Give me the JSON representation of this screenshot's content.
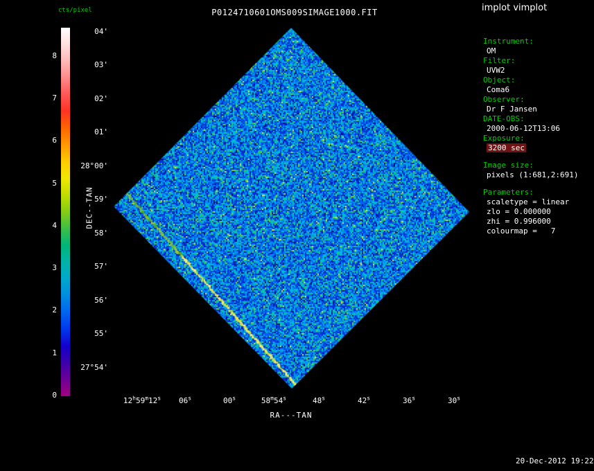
{
  "header": {
    "app_label": "implot vimplot"
  },
  "footer": {
    "timestamp": "20-Dec-2012 19:22"
  },
  "colors": {
    "background": "#000000",
    "label_green": "#00cc00",
    "text_white": "#ffffff",
    "exposure_highlight": "#6e1414"
  },
  "sidebar": {
    "fields": [
      {
        "label": "Instrument:",
        "value": "OM"
      },
      {
        "label": "Filter:",
        "value": "UVW2"
      },
      {
        "label": "Object:",
        "value": "Coma6"
      },
      {
        "label": "Observer:",
        "value": "Dr F Jansen"
      },
      {
        "label": "DATE-OBS:",
        "value": "2000-06-12T13:06"
      },
      {
        "label": "Exposure:",
        "value": "3200 sec",
        "highlighted": true
      }
    ],
    "image_size": {
      "label": "Image size:",
      "value": "pixels (1:681,2:691)"
    },
    "parameters": {
      "label": "Parameters:",
      "lines": [
        "scaletype = linear",
        "zlo = 0.000000",
        "zhi = 0.996000",
        "colourmap =   7"
      ]
    }
  },
  "chart_data": {
    "type": "heatmap",
    "title": "P0124710601OMS009SIMAGE1000.FIT",
    "xlabel": "RA---TAN",
    "ylabel": "DEC--TAN",
    "x_tick_labels": [
      "12h59m12s",
      "06s",
      "00s",
      "58m54s",
      "48s",
      "42s",
      "36s",
      "30s"
    ],
    "y_tick_labels": [
      "04'",
      "03'",
      "02'",
      "01'",
      "28°00'",
      "59'",
      "58'",
      "57'",
      "56'",
      "55'",
      "27°54'"
    ],
    "colorbar": {
      "label": "cts/pixel",
      "tick_values": [
        8,
        7,
        6,
        5,
        4,
        3,
        2,
        1,
        0
      ],
      "colors_top_to_bottom": [
        "#ffffff",
        "#ffe0e0",
        "#ffb8b8",
        "#ff8a8a",
        "#ff5555",
        "#ff3322",
        "#ff6600",
        "#ff9900",
        "#ffcc00",
        "#f0e800",
        "#c0dc00",
        "#84cc14",
        "#3cbe46",
        "#00b478",
        "#00b4a8",
        "#00a8cc",
        "#008ce0",
        "#0064ee",
        "#0038ee",
        "#1400cc",
        "#3c00aa",
        "#6e0096",
        "#a00080"
      ]
    },
    "image": {
      "description": "Noisy blue-cyan OM sky exposure; square detector field rotated ~45 deg (diamond outline) with a bright green-yellow diagonal streak running from the upper-left edge down to the bottom corner",
      "corners_canvas": {
        "top": [
          260,
          5
        ],
        "right": [
          517,
          271
        ],
        "bottom": [
          261,
          526
        ],
        "left": [
          4,
          263
        ]
      },
      "noise_palette": [
        {
          "color": "#000f8c",
          "weight": 0.05
        },
        {
          "color": "#003bb0",
          "weight": 0.035
        },
        {
          "color": "#0030d8",
          "weight": 0.2
        },
        {
          "color": "#0060ee",
          "weight": 0.22
        },
        {
          "color": "#0090ee",
          "weight": 0.19
        },
        {
          "color": "#00b8e0",
          "weight": 0.16
        },
        {
          "color": "#00c9a8",
          "weight": 0.08
        },
        {
          "color": "#2fc45f",
          "weight": 0.05
        },
        {
          "color": "#7ed321",
          "weight": 0.025
        },
        {
          "color": "#d6e84a",
          "weight": 0.01
        }
      ],
      "streak": {
        "from_canvas": [
          12,
          233
        ],
        "to_canvas": [
          268,
          522
        ],
        "colors_start": [
          "#55aa22",
          "#77bb33",
          "#99cc33"
        ],
        "colors_end": [
          "#ccdd44",
          "#eeee55",
          "#ffee77"
        ]
      }
    }
  }
}
